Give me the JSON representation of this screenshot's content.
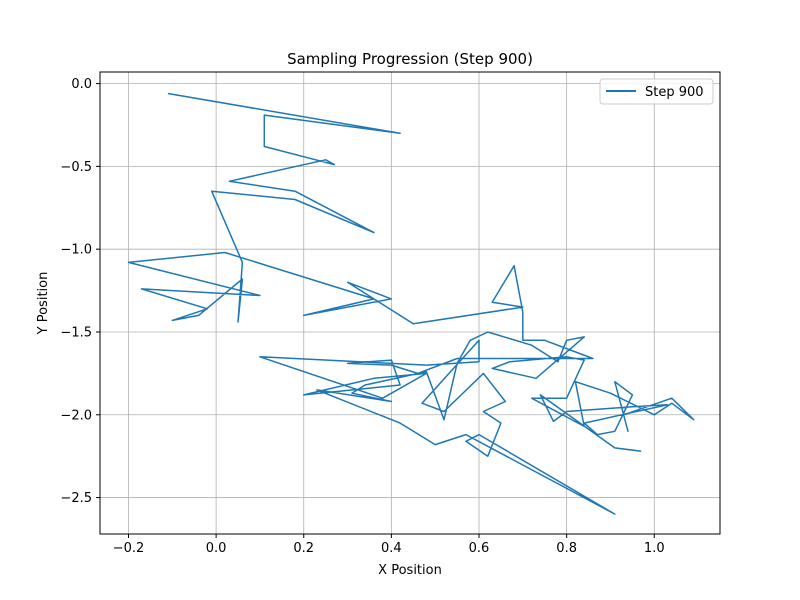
{
  "chart_data": {
    "type": "line",
    "title": "Sampling Progression (Step 900)",
    "xlabel": "X Position",
    "ylabel": "Y Position",
    "xlim": [
      -0.265,
      1.15
    ],
    "ylim": [
      -2.72,
      0.07
    ],
    "xticks": [
      -0.2,
      0.0,
      0.2,
      0.4,
      0.6,
      0.8,
      1.0
    ],
    "xtick_labels": [
      "−0.2",
      "0.0",
      "0.2",
      "0.4",
      "0.6",
      "0.8",
      "1.0"
    ],
    "yticks": [
      0.0,
      -0.5,
      -1.0,
      -1.5,
      -2.0,
      -2.5
    ],
    "ytick_labels": [
      "0.0",
      "−0.5",
      "−1.0",
      "−1.5",
      "−2.0",
      "−2.5"
    ],
    "grid": true,
    "legend_position": "upper-right",
    "series": [
      {
        "name": "Step 900",
        "color": "#1f77b4",
        "points": [
          [
            -0.11,
            -0.06
          ],
          [
            0.42,
            -0.3
          ],
          [
            0.11,
            -0.19
          ],
          [
            0.11,
            -0.38
          ],
          [
            0.27,
            -0.49
          ],
          [
            0.25,
            -0.46
          ],
          [
            0.03,
            -0.59
          ],
          [
            0.18,
            -0.65
          ],
          [
            0.36,
            -0.9
          ],
          [
            0.18,
            -0.7
          ],
          [
            -0.01,
            -0.65
          ],
          [
            0.06,
            -1.08
          ],
          [
            0.05,
            -1.44
          ],
          [
            0.06,
            -1.18
          ],
          [
            -0.04,
            -1.4
          ],
          [
            -0.1,
            -1.43
          ],
          [
            -0.02,
            -1.36
          ],
          [
            -0.17,
            -1.24
          ],
          [
            0.1,
            -1.28
          ],
          [
            -0.2,
            -1.08
          ],
          [
            0.02,
            -1.02
          ],
          [
            0.36,
            -1.3
          ],
          [
            0.2,
            -1.4
          ],
          [
            0.4,
            -1.3
          ],
          [
            0.3,
            -1.2
          ],
          [
            0.45,
            -1.45
          ],
          [
            0.7,
            -1.35
          ],
          [
            0.63,
            -1.32
          ],
          [
            0.68,
            -1.1
          ],
          [
            0.7,
            -1.38
          ],
          [
            0.7,
            -1.55
          ],
          [
            0.75,
            -1.55
          ],
          [
            0.86,
            -1.66
          ],
          [
            0.55,
            -1.66
          ],
          [
            0.46,
            -1.75
          ],
          [
            0.4,
            -1.7
          ],
          [
            0.3,
            -1.69
          ],
          [
            0.4,
            -1.67
          ],
          [
            0.42,
            -1.82
          ],
          [
            0.2,
            -1.88
          ],
          [
            0.36,
            -1.78
          ],
          [
            0.48,
            -1.75
          ],
          [
            0.38,
            -1.9
          ],
          [
            0.1,
            -1.65
          ],
          [
            0.48,
            -1.7
          ],
          [
            0.6,
            -1.68
          ],
          [
            0.6,
            -1.55
          ],
          [
            0.47,
            -1.93
          ],
          [
            0.52,
            -1.98
          ],
          [
            0.61,
            -1.75
          ],
          [
            0.66,
            -1.92
          ],
          [
            0.61,
            -1.98
          ],
          [
            0.65,
            -2.05
          ],
          [
            0.62,
            -2.25
          ],
          [
            0.57,
            -2.16
          ],
          [
            0.6,
            -2.12
          ],
          [
            0.91,
            -2.6
          ],
          [
            0.57,
            -2.12
          ],
          [
            0.5,
            -2.18
          ],
          [
            0.42,
            -2.05
          ],
          [
            0.23,
            -1.85
          ],
          [
            0.4,
            -1.92
          ],
          [
            0.31,
            -1.87
          ],
          [
            0.34,
            -1.82
          ],
          [
            0.48,
            -1.74
          ],
          [
            0.52,
            -2.03
          ],
          [
            0.55,
            -1.69
          ],
          [
            0.58,
            -1.55
          ],
          [
            0.62,
            -1.5
          ],
          [
            0.72,
            -1.58
          ],
          [
            0.78,
            -1.68
          ],
          [
            0.8,
            -1.55
          ],
          [
            0.84,
            -1.53
          ],
          [
            0.73,
            -1.78
          ],
          [
            0.63,
            -1.72
          ],
          [
            0.67,
            -1.68
          ],
          [
            0.8,
            -1.65
          ],
          [
            0.84,
            -1.67
          ],
          [
            0.8,
            -1.9
          ],
          [
            0.72,
            -1.9
          ],
          [
            0.84,
            -2.07
          ],
          [
            0.82,
            -1.8
          ],
          [
            0.9,
            -1.87
          ],
          [
            1.0,
            -2.0
          ],
          [
            1.04,
            -1.93
          ],
          [
            1.09,
            -2.03
          ],
          [
            1.04,
            -1.9
          ],
          [
            0.93,
            -2.0
          ],
          [
            0.94,
            -2.1
          ],
          [
            0.91,
            -1.8
          ],
          [
            0.95,
            -1.88
          ],
          [
            0.91,
            -2.1
          ],
          [
            0.87,
            -2.12
          ],
          [
            0.84,
            -2.05
          ],
          [
            0.96,
            -1.98
          ],
          [
            1.03,
            -1.94
          ],
          [
            0.96,
            -1.95
          ],
          [
            0.8,
            -1.98
          ],
          [
            0.77,
            -2.04
          ],
          [
            0.74,
            -1.88
          ],
          [
            0.91,
            -2.2
          ],
          [
            0.97,
            -2.22
          ]
        ]
      }
    ]
  }
}
